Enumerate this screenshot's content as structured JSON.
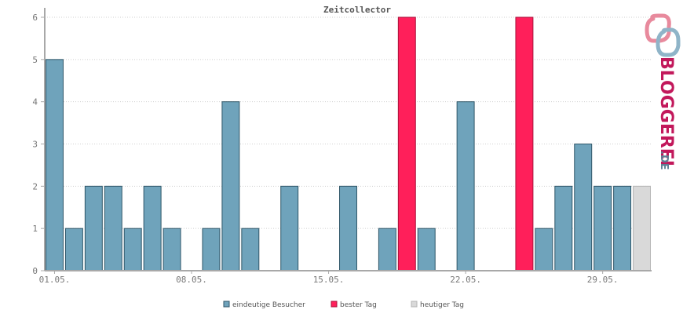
{
  "chart_data": {
    "type": "bar",
    "title": "Zeitcollector",
    "xlabel": "",
    "ylabel": "",
    "ylim": [
      0,
      6
    ],
    "yticks": [
      0,
      1,
      2,
      3,
      4,
      5,
      6
    ],
    "grid": true,
    "x_tick_labels": [
      "01.05.",
      "08.05.",
      "15.05.",
      "22.05.",
      "29.05."
    ],
    "categories": [
      "01.05.",
      "02.05.",
      "03.05.",
      "04.05.",
      "05.05.",
      "06.05.",
      "07.05.",
      "08.05.",
      "09.05.",
      "10.05.",
      "11.05.",
      "12.05.",
      "13.05.",
      "14.05.",
      "15.05.",
      "16.05.",
      "17.05.",
      "18.05.",
      "19.05.",
      "20.05.",
      "21.05.",
      "22.05.",
      "23.05.",
      "24.05.",
      "25.05.",
      "26.05.",
      "27.05.",
      "28.05.",
      "29.05.",
      "30.05.",
      "31.05."
    ],
    "values": [
      5,
      1,
      2,
      2,
      1,
      2,
      1,
      0,
      1,
      4,
      1,
      0,
      2,
      0,
      0,
      2,
      0,
      1,
      6,
      1,
      0,
      4,
      0,
      0,
      6,
      1,
      2,
      3,
      2,
      2,
      2
    ],
    "bar_types": [
      "normal",
      "normal",
      "normal",
      "normal",
      "normal",
      "normal",
      "normal",
      "normal",
      "normal",
      "normal",
      "normal",
      "normal",
      "normal",
      "normal",
      "normal",
      "normal",
      "normal",
      "normal",
      "best",
      "normal",
      "normal",
      "normal",
      "normal",
      "normal",
      "best",
      "normal",
      "normal",
      "normal",
      "normal",
      "normal",
      "today"
    ],
    "legend_position": "bottom-center",
    "legend": [
      {
        "key": "normal",
        "label": "eindeutige Besucher",
        "color": "#6fa3bb"
      },
      {
        "key": "best",
        "label": "bester Tag",
        "color": "#ff1f5a"
      },
      {
        "key": "today",
        "label": "heutiger Tag",
        "color": "#d9d9d9"
      }
    ],
    "colors": {
      "normal_fill": "#6fa3bb",
      "normal_stroke": "#2f5668",
      "best_fill": "#ff1f5a",
      "best_stroke": "#a8123a",
      "today_fill": "#d9d9d9",
      "today_stroke": "#b5b5b5",
      "axis": "#a8a8a8",
      "grid": "#cfcfcf"
    }
  },
  "logo": {
    "text_main": "BLOGGEREI",
    "text_suffix": ".DE",
    "icon": "speech-bubbles-icon",
    "colors": {
      "main": "#c2185b",
      "suffix": "#5c7f94",
      "pink": "#e88a9d",
      "blue": "#8fb4c8"
    }
  }
}
